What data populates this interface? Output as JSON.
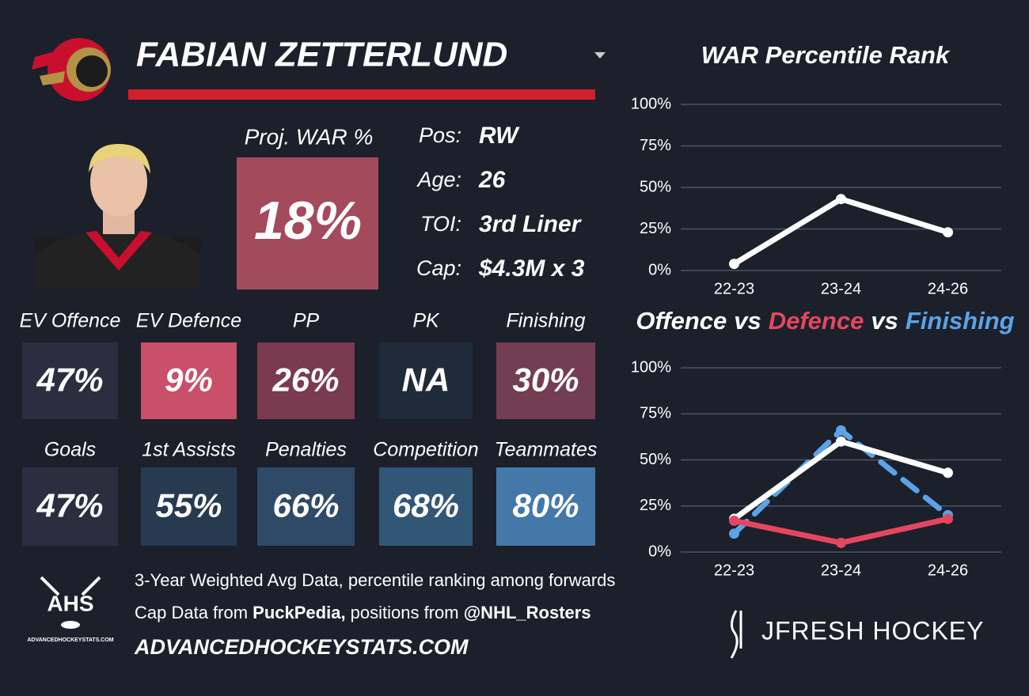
{
  "header": {
    "name": "FABIAN ZETTERLUND"
  },
  "projection": {
    "label": "Proj. WAR %",
    "value": "18%",
    "color": "#a34a5d"
  },
  "info": [
    {
      "label": "Pos:",
      "value": "RW"
    },
    {
      "label": "Age:",
      "value": "26"
    },
    {
      "label": "TOI:",
      "value": "3rd Liner"
    },
    {
      "label": "Cap:",
      "value": "$4.3M x 3"
    }
  ],
  "metrics": [
    [
      {
        "label": "EV Offence",
        "value": "47%",
        "color": "#2b2e3f"
      },
      {
        "label": "EV Defence",
        "value": "9%",
        "color": "#c85068"
      },
      {
        "label": "PP",
        "value": "26%",
        "color": "#7a3a50"
      },
      {
        "label": "PK",
        "value": "NA",
        "color": "#1f2b38"
      },
      {
        "label": "Finishing",
        "value": "30%",
        "color": "#733d52"
      }
    ],
    [
      {
        "label": "Goals",
        "value": "47%",
        "color": "#2b2e3f"
      },
      {
        "label": "1st Assists",
        "value": "55%",
        "color": "#273a4f"
      },
      {
        "label": "Penalties",
        "value": "66%",
        "color": "#2f4a67"
      },
      {
        "label": "Competition",
        "value": "68%",
        "color": "#325676"
      },
      {
        "label": "Teammates",
        "value": "80%",
        "color": "#4478a8"
      }
    ]
  ],
  "chart_data": [
    {
      "type": "line",
      "title": [
        "WAR Percentile Rank"
      ],
      "title_colors": [
        "#ffffff"
      ],
      "categories": [
        "22-23",
        "23-24",
        "24-26"
      ],
      "series": [
        {
          "color": "#ffffff",
          "values": [
            4,
            43,
            23
          ]
        }
      ],
      "ylim": [
        0,
        100
      ],
      "yticks": [
        {
          "value": 0,
          "label": "0%"
        },
        {
          "value": 25,
          "label": "25%"
        },
        {
          "value": 50,
          "label": "50%"
        },
        {
          "value": 75,
          "label": "75%"
        },
        {
          "value": 100,
          "label": "100%"
        }
      ],
      "grid": true
    },
    {
      "type": "line",
      "title": [
        "Offence",
        "vs",
        "Defence",
        "vs",
        "Finishing"
      ],
      "title_colors": [
        "#ffffff",
        "#ffffff",
        "#e5465f",
        "#ffffff",
        "#5ba3e6"
      ],
      "categories": [
        "22-23",
        "23-24",
        "24-26"
      ],
      "series": [
        {
          "name": "Finishing",
          "color": "#5ba3e6",
          "dashed": true,
          "values": [
            10,
            66,
            20
          ]
        },
        {
          "name": "Offence",
          "color": "#ffffff",
          "values": [
            18,
            60,
            43
          ]
        },
        {
          "name": "Defence",
          "color": "#e5465f",
          "values": [
            17,
            5,
            18
          ]
        }
      ],
      "ylim": [
        0,
        100
      ],
      "yticks": [
        {
          "value": 0,
          "label": "0%"
        },
        {
          "value": 25,
          "label": "25%"
        },
        {
          "value": 50,
          "label": "50%"
        },
        {
          "value": 75,
          "label": "75%"
        },
        {
          "value": 100,
          "label": "100%"
        }
      ],
      "grid": true
    }
  ],
  "footer": {
    "lines": [
      [
        "3-Year Weighted Avg Data, percentile ranking among forwards"
      ],
      [
        "Cap Data from ",
        "PuckPedia,",
        " positions from ",
        "@NHL_Rosters"
      ]
    ],
    "website": "ADVANCEDHOCKEYSTATS.COM",
    "ahs_logo": "AHS",
    "ahs_logo_url": "ADVANCEDHOCKEYSTATS.COM",
    "brand": "JFRESH HOCKEY"
  }
}
